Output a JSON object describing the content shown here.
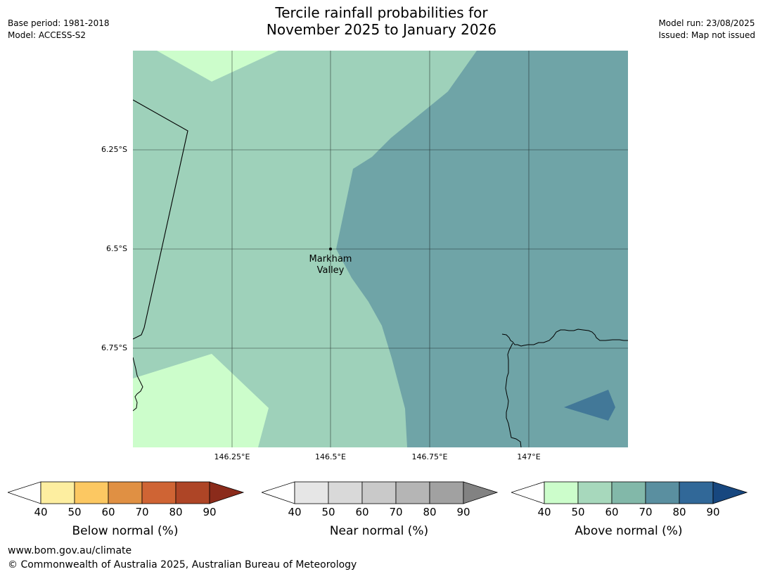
{
  "header": {
    "left": [
      "Base period: 1981-2018",
      "Model: ACCESS-S2"
    ],
    "right": [
      "Model run: 23/08/2025",
      "Issued: Map not issued"
    ],
    "title_lines": [
      "Tercile rainfall probabilities for",
      "November 2025 to January 2026"
    ]
  },
  "map": {
    "lon_labels": [
      "146.25°E",
      "146.5°E",
      "146.75°E",
      "147°E"
    ],
    "lat_labels": [
      "6.25°S",
      "6.5°S",
      "6.75°S"
    ],
    "place": {
      "name_lines": [
        "Markham",
        "Valley"
      ]
    },
    "colors": {
      "above_40_50": "#ccfdcb",
      "above_50_60": "#9ed1ba",
      "above_60_70": "#6fa4a7",
      "above_70_80": "#427898",
      "coast": "#000000",
      "grid": "#000000"
    }
  },
  "colorbars": [
    {
      "label": "Below normal (%)",
      "ticks": [
        "40",
        "50",
        "60",
        "70",
        "80",
        "90"
      ],
      "colors": [
        "#ffffff",
        "#fdeea0",
        "#fcc862",
        "#e09043",
        "#cf6434",
        "#ae4526",
        "#8b2b1b"
      ]
    },
    {
      "label": "Near normal (%)",
      "ticks": [
        "40",
        "50",
        "60",
        "70",
        "80",
        "90"
      ],
      "colors": [
        "#ffffff",
        "#e6e6e6",
        "#d9d9d9",
        "#c9c9c9",
        "#b5b5b5",
        "#a1a1a1",
        "#828282"
      ]
    },
    {
      "label": "Above normal (%)",
      "ticks": [
        "40",
        "50",
        "60",
        "70",
        "80",
        "90"
      ],
      "colors": [
        "#ffffff",
        "#ccfdcb",
        "#a7d8bc",
        "#82b8a9",
        "#5a8fa0",
        "#316898",
        "#17477f"
      ]
    }
  ],
  "footer": [
    "www.bom.gov.au/climate",
    "© Commonwealth of Australia 2025, Australian Bureau of Meteorology"
  ]
}
